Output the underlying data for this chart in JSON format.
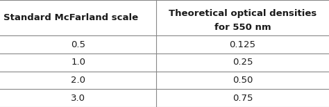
{
  "col1_header": "Standard McFarland scale",
  "col2_header_line1": "Theoretical optical densities",
  "col2_header_line2": "for 550 nm",
  "rows": [
    [
      "0.5",
      "0.125"
    ],
    [
      "1.0",
      "0.25"
    ],
    [
      "2.0",
      "0.50"
    ],
    [
      "3.0",
      "0.75"
    ]
  ],
  "background_color": "#ffffff",
  "text_color": "#1a1a1a",
  "line_color": "#888888",
  "col_split": 0.475,
  "header_fontsize": 9.5,
  "data_fontsize": 9.5,
  "line_width": 0.8
}
